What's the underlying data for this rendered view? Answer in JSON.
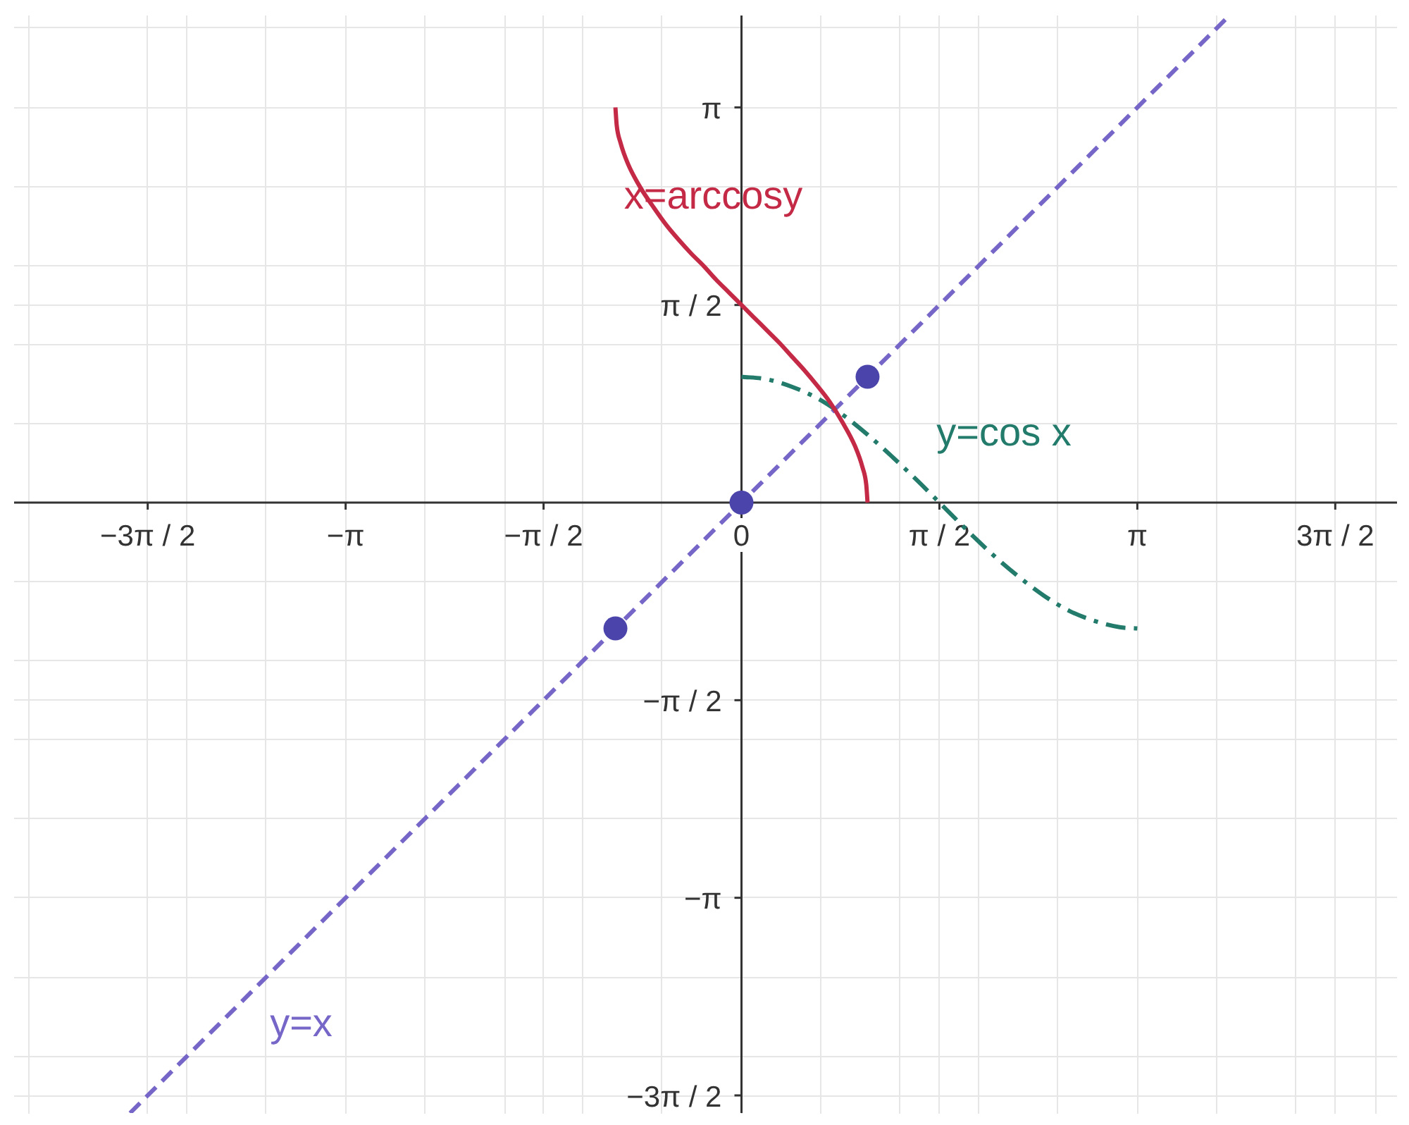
{
  "chart_data": {
    "type": "line",
    "xlim": [
      -5.77,
      5.2
    ],
    "ylim": [
      -4.85,
      3.87
    ],
    "grid": true,
    "xticks": [
      {
        "value": -5.65,
        "label": null
      },
      {
        "value": -4.71,
        "label": "−3π / 2"
      },
      {
        "value": -4.4,
        "label": null
      },
      {
        "value": -3.77,
        "label": null
      },
      {
        "value": -3.14,
        "label": "−π"
      },
      {
        "value": -2.51,
        "label": null
      },
      {
        "value": -1.88,
        "label": null
      },
      {
        "value": -1.57,
        "label": "−π / 2"
      },
      {
        "value": -1.26,
        "label": null
      },
      {
        "value": -0.63,
        "label": null
      },
      0,
      {
        "value": 0.63,
        "label": null
      },
      {
        "value": 1.26,
        "label": null
      },
      {
        "value": 1.57,
        "label": "π / 2"
      },
      {
        "value": 1.88,
        "label": null
      },
      {
        "value": 2.51,
        "label": null
      },
      {
        "value": 3.14,
        "label": "π"
      },
      {
        "value": 3.77,
        "label": null
      },
      {
        "value": 4.4,
        "label": null
      },
      {
        "value": 4.71,
        "label": "3π / 2"
      },
      {
        "value": 5.03,
        "label": null
      }
    ],
    "yticks": [
      {
        "value": -4.71,
        "label": "−3π / 2"
      },
      {
        "value": -4.4,
        "label": null
      },
      {
        "value": -3.77,
        "label": null
      },
      {
        "value": -3.14,
        "label": "−π"
      },
      {
        "value": -2.51,
        "label": null
      },
      {
        "value": -1.88,
        "label": null
      },
      {
        "value": -1.57,
        "label": "−π / 2"
      },
      {
        "value": -1.26,
        "label": null
      },
      {
        "value": -0.63,
        "label": null
      },
      {
        "value": 0.63,
        "label": null
      },
      {
        "value": 1.26,
        "label": null
      },
      {
        "value": 1.57,
        "label": "π / 2"
      },
      {
        "value": 1.88,
        "label": null
      },
      {
        "value": 2.51,
        "label": null
      },
      {
        "value": 3.14,
        "label": "π"
      },
      {
        "value": 3.77,
        "label": null
      }
    ],
    "series": [
      {
        "name": "y=x",
        "color": "#7566c8",
        "line_style": "dashed",
        "x": [
          -4.85,
          3.87
        ],
        "values": [
          -4.85,
          3.87
        ]
      },
      {
        "name": "y=cos x",
        "color": "#237b6c",
        "line_style": "dashdot",
        "x": [
          0,
          0.2,
          0.4,
          0.6,
          0.8,
          1.0,
          1.2,
          1.4,
          1.6,
          1.8,
          2.0,
          2.2,
          2.4,
          2.6,
          2.8,
          3.0,
          3.14
        ],
        "values": [
          1,
          0.98,
          0.92,
          0.83,
          0.7,
          0.54,
          0.36,
          0.17,
          -0.03,
          -0.23,
          -0.42,
          -0.59,
          -0.74,
          -0.86,
          -0.94,
          -0.99,
          -1
        ]
      },
      {
        "name": "x=arccosy",
        "color": "#c42a46",
        "line_style": "solid",
        "x": [
          -1,
          -0.99,
          -0.96,
          -0.9,
          -0.8,
          -0.7,
          -0.6,
          -0.5,
          -0.4,
          -0.3,
          -0.2,
          -0.1,
          0,
          0.1,
          0.2,
          0.3,
          0.4,
          0.5,
          0.6,
          0.7,
          0.8,
          0.9,
          0.96,
          0.99,
          1
        ],
        "values": [
          3.14,
          3.0,
          2.86,
          2.69,
          2.5,
          2.35,
          2.21,
          2.09,
          1.98,
          1.88,
          1.77,
          1.67,
          1.57,
          1.47,
          1.37,
          1.27,
          1.16,
          1.05,
          0.93,
          0.8,
          0.64,
          0.45,
          0.28,
          0.14,
          0
        ]
      },
      {
        "type": "scatter",
        "color": "#4b44aa",
        "marker": "circle",
        "x": [
          -1,
          0,
          1
        ],
        "values": [
          -1,
          0,
          1
        ]
      }
    ]
  }
}
